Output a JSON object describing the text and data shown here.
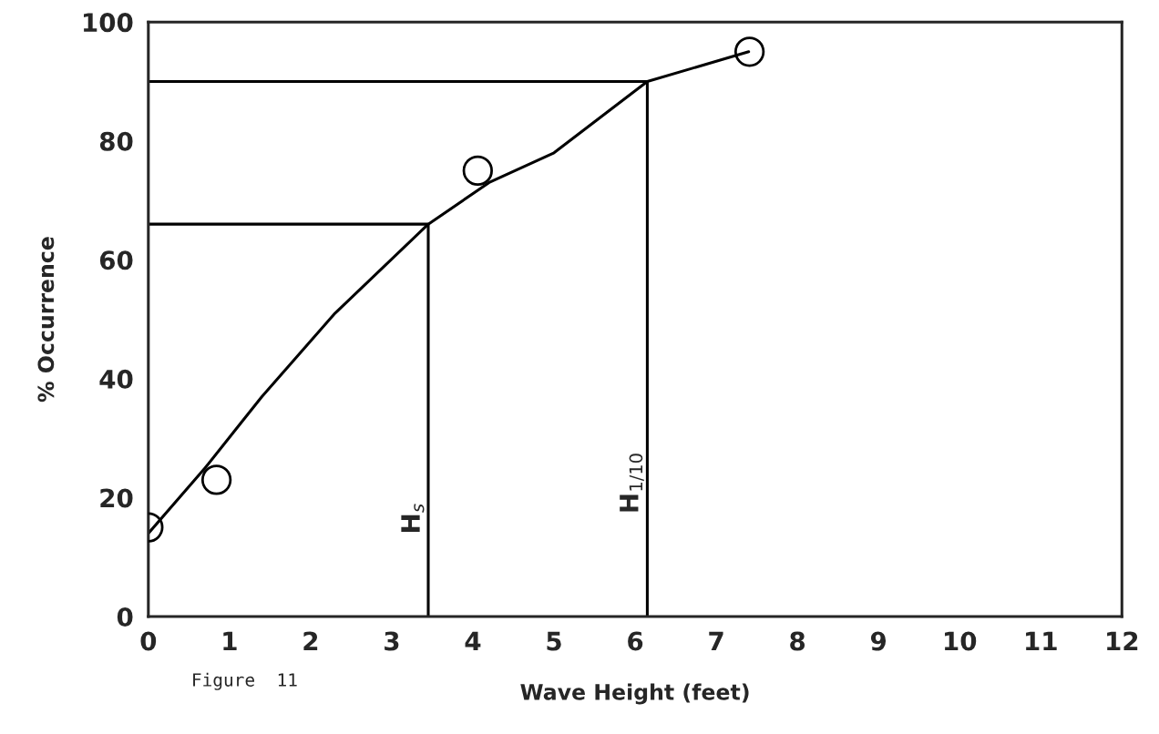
{
  "chart_data": {
    "type": "scatter",
    "xlabel": "Wave Height (feet)",
    "ylabel": "% Occurrence",
    "xlim": [
      0,
      12
    ],
    "ylim": [
      0,
      100
    ],
    "xticks": [
      0,
      1,
      2,
      3,
      4,
      5,
      6,
      7,
      8,
      9,
      10,
      11,
      12
    ],
    "yticks": [
      0,
      20,
      40,
      60,
      80,
      100
    ],
    "grid": false,
    "legend": false,
    "series": [
      {
        "color": "#000000",
        "marker": "circle",
        "x": [
          0,
          0.84,
          4.06,
          7.41
        ],
        "values": [
          15,
          23,
          75,
          95
        ]
      },
      {
        "type": "line",
        "color": "#000000",
        "x": [
          0,
          0.7,
          1.4,
          2.3,
          3.45,
          4.2,
          5.0,
          6.15,
          7.4
        ],
        "values": [
          14,
          25,
          37,
          51,
          66,
          73,
          78,
          90,
          95
        ]
      },
      {
        "type": "line",
        "name": "H$_{s}$",
        "color": "#000000",
        "x": [
          0,
          3.45,
          3.45
        ],
        "values": [
          66,
          66,
          0
        ]
      },
      {
        "type": "line",
        "name": "H$_{1/10}$",
        "color": "#000000",
        "x": [
          0,
          6.15,
          6.15
        ],
        "values": [
          90,
          90,
          0
        ]
      }
    ],
    "annotations": [
      "Figure  11"
    ]
  }
}
